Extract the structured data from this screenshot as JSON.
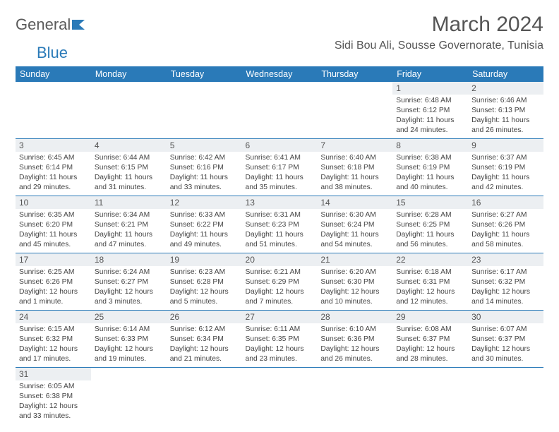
{
  "brand": {
    "part1": "General",
    "part2": "Blue"
  },
  "title": "March 2024",
  "location": "Sidi Bou Ali, Sousse Governorate, Tunisia",
  "colors": {
    "header_bg": "#2a7ab8",
    "header_fg": "#ffffff",
    "daynum_bg": "#eceff2",
    "rule": "#2a7ab8"
  },
  "weekdays": [
    "Sunday",
    "Monday",
    "Tuesday",
    "Wednesday",
    "Thursday",
    "Friday",
    "Saturday"
  ],
  "weeks": [
    [
      {
        "n": "",
        "sr": "",
        "ss": "",
        "dl": ""
      },
      {
        "n": "",
        "sr": "",
        "ss": "",
        "dl": ""
      },
      {
        "n": "",
        "sr": "",
        "ss": "",
        "dl": ""
      },
      {
        "n": "",
        "sr": "",
        "ss": "",
        "dl": ""
      },
      {
        "n": "",
        "sr": "",
        "ss": "",
        "dl": ""
      },
      {
        "n": "1",
        "sr": "Sunrise: 6:48 AM",
        "ss": "Sunset: 6:12 PM",
        "dl": "Daylight: 11 hours and 24 minutes."
      },
      {
        "n": "2",
        "sr": "Sunrise: 6:46 AM",
        "ss": "Sunset: 6:13 PM",
        "dl": "Daylight: 11 hours and 26 minutes."
      }
    ],
    [
      {
        "n": "3",
        "sr": "Sunrise: 6:45 AM",
        "ss": "Sunset: 6:14 PM",
        "dl": "Daylight: 11 hours and 29 minutes."
      },
      {
        "n": "4",
        "sr": "Sunrise: 6:44 AM",
        "ss": "Sunset: 6:15 PM",
        "dl": "Daylight: 11 hours and 31 minutes."
      },
      {
        "n": "5",
        "sr": "Sunrise: 6:42 AM",
        "ss": "Sunset: 6:16 PM",
        "dl": "Daylight: 11 hours and 33 minutes."
      },
      {
        "n": "6",
        "sr": "Sunrise: 6:41 AM",
        "ss": "Sunset: 6:17 PM",
        "dl": "Daylight: 11 hours and 35 minutes."
      },
      {
        "n": "7",
        "sr": "Sunrise: 6:40 AM",
        "ss": "Sunset: 6:18 PM",
        "dl": "Daylight: 11 hours and 38 minutes."
      },
      {
        "n": "8",
        "sr": "Sunrise: 6:38 AM",
        "ss": "Sunset: 6:19 PM",
        "dl": "Daylight: 11 hours and 40 minutes."
      },
      {
        "n": "9",
        "sr": "Sunrise: 6:37 AM",
        "ss": "Sunset: 6:19 PM",
        "dl": "Daylight: 11 hours and 42 minutes."
      }
    ],
    [
      {
        "n": "10",
        "sr": "Sunrise: 6:35 AM",
        "ss": "Sunset: 6:20 PM",
        "dl": "Daylight: 11 hours and 45 minutes."
      },
      {
        "n": "11",
        "sr": "Sunrise: 6:34 AM",
        "ss": "Sunset: 6:21 PM",
        "dl": "Daylight: 11 hours and 47 minutes."
      },
      {
        "n": "12",
        "sr": "Sunrise: 6:33 AM",
        "ss": "Sunset: 6:22 PM",
        "dl": "Daylight: 11 hours and 49 minutes."
      },
      {
        "n": "13",
        "sr": "Sunrise: 6:31 AM",
        "ss": "Sunset: 6:23 PM",
        "dl": "Daylight: 11 hours and 51 minutes."
      },
      {
        "n": "14",
        "sr": "Sunrise: 6:30 AM",
        "ss": "Sunset: 6:24 PM",
        "dl": "Daylight: 11 hours and 54 minutes."
      },
      {
        "n": "15",
        "sr": "Sunrise: 6:28 AM",
        "ss": "Sunset: 6:25 PM",
        "dl": "Daylight: 11 hours and 56 minutes."
      },
      {
        "n": "16",
        "sr": "Sunrise: 6:27 AM",
        "ss": "Sunset: 6:26 PM",
        "dl": "Daylight: 11 hours and 58 minutes."
      }
    ],
    [
      {
        "n": "17",
        "sr": "Sunrise: 6:25 AM",
        "ss": "Sunset: 6:26 PM",
        "dl": "Daylight: 12 hours and 1 minute."
      },
      {
        "n": "18",
        "sr": "Sunrise: 6:24 AM",
        "ss": "Sunset: 6:27 PM",
        "dl": "Daylight: 12 hours and 3 minutes."
      },
      {
        "n": "19",
        "sr": "Sunrise: 6:23 AM",
        "ss": "Sunset: 6:28 PM",
        "dl": "Daylight: 12 hours and 5 minutes."
      },
      {
        "n": "20",
        "sr": "Sunrise: 6:21 AM",
        "ss": "Sunset: 6:29 PM",
        "dl": "Daylight: 12 hours and 7 minutes."
      },
      {
        "n": "21",
        "sr": "Sunrise: 6:20 AM",
        "ss": "Sunset: 6:30 PM",
        "dl": "Daylight: 12 hours and 10 minutes."
      },
      {
        "n": "22",
        "sr": "Sunrise: 6:18 AM",
        "ss": "Sunset: 6:31 PM",
        "dl": "Daylight: 12 hours and 12 minutes."
      },
      {
        "n": "23",
        "sr": "Sunrise: 6:17 AM",
        "ss": "Sunset: 6:32 PM",
        "dl": "Daylight: 12 hours and 14 minutes."
      }
    ],
    [
      {
        "n": "24",
        "sr": "Sunrise: 6:15 AM",
        "ss": "Sunset: 6:32 PM",
        "dl": "Daylight: 12 hours and 17 minutes."
      },
      {
        "n": "25",
        "sr": "Sunrise: 6:14 AM",
        "ss": "Sunset: 6:33 PM",
        "dl": "Daylight: 12 hours and 19 minutes."
      },
      {
        "n": "26",
        "sr": "Sunrise: 6:12 AM",
        "ss": "Sunset: 6:34 PM",
        "dl": "Daylight: 12 hours and 21 minutes."
      },
      {
        "n": "27",
        "sr": "Sunrise: 6:11 AM",
        "ss": "Sunset: 6:35 PM",
        "dl": "Daylight: 12 hours and 23 minutes."
      },
      {
        "n": "28",
        "sr": "Sunrise: 6:10 AM",
        "ss": "Sunset: 6:36 PM",
        "dl": "Daylight: 12 hours and 26 minutes."
      },
      {
        "n": "29",
        "sr": "Sunrise: 6:08 AM",
        "ss": "Sunset: 6:37 PM",
        "dl": "Daylight: 12 hours and 28 minutes."
      },
      {
        "n": "30",
        "sr": "Sunrise: 6:07 AM",
        "ss": "Sunset: 6:37 PM",
        "dl": "Daylight: 12 hours and 30 minutes."
      }
    ],
    [
      {
        "n": "31",
        "sr": "Sunrise: 6:05 AM",
        "ss": "Sunset: 6:38 PM",
        "dl": "Daylight: 12 hours and 33 minutes."
      },
      {
        "n": "",
        "sr": "",
        "ss": "",
        "dl": ""
      },
      {
        "n": "",
        "sr": "",
        "ss": "",
        "dl": ""
      },
      {
        "n": "",
        "sr": "",
        "ss": "",
        "dl": ""
      },
      {
        "n": "",
        "sr": "",
        "ss": "",
        "dl": ""
      },
      {
        "n": "",
        "sr": "",
        "ss": "",
        "dl": ""
      },
      {
        "n": "",
        "sr": "",
        "ss": "",
        "dl": ""
      }
    ]
  ]
}
